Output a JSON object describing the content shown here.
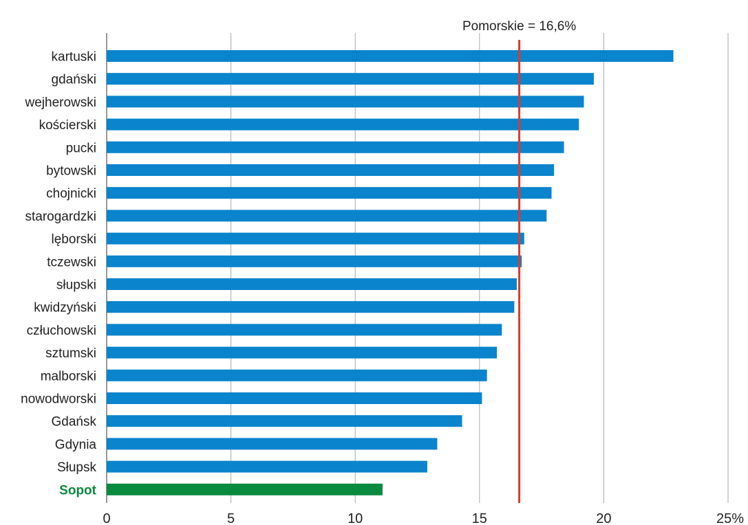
{
  "chart_data": {
    "type": "bar",
    "orientation": "horizontal",
    "categories": [
      "kartuski",
      "gdański",
      "wejherowski",
      "kościerski",
      "pucki",
      "bytowski",
      "chojnicki",
      "starogardzki",
      "lęborski",
      "tczewski",
      "słupski",
      "kwidzyński",
      "człuchowski",
      "sztumski",
      "malborski",
      "nowodworski",
      "Gdańsk",
      "Gdynia",
      "Słupsk",
      "Sopot"
    ],
    "values": [
      22.8,
      19.6,
      19.2,
      19.0,
      18.4,
      18.0,
      17.9,
      17.7,
      16.8,
      16.7,
      16.5,
      16.4,
      15.9,
      15.7,
      15.3,
      15.1,
      14.3,
      13.3,
      12.9,
      11.1
    ],
    "highlight_category": "Sopot",
    "xlim": [
      0,
      25
    ],
    "xticks": [
      0,
      5,
      10,
      15,
      20,
      25
    ],
    "xtick_labels": [
      "0",
      "5",
      "10",
      "15",
      "20",
      "25%"
    ],
    "reference_line": {
      "value": 16.6,
      "label": "Pomorskie = 16,6%"
    },
    "grid": "vertical",
    "colors": {
      "bar": "#0a84cc",
      "highlight": "#0a8a3e",
      "reference": "#e0392b",
      "grid": "#aaaaaa"
    }
  }
}
